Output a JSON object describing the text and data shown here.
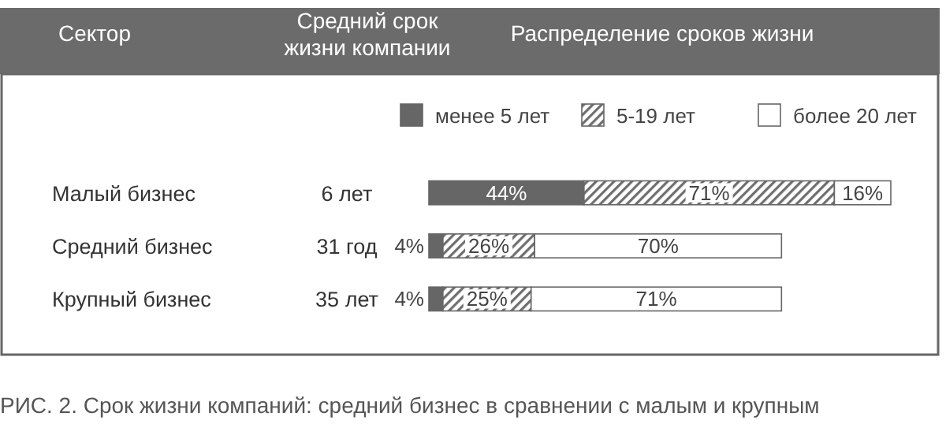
{
  "chart_data": {
    "type": "bar",
    "orientation": "horizontal",
    "stacked": true,
    "legend": "top right",
    "categories": [
      "Малый бизнес",
      "Средний бизнес",
      "Крупный бизнес"
    ],
    "series": [
      {
        "name": "менее 5 лет",
        "color": "#666666",
        "values": [
          44,
          4,
          4
        ],
        "value_labels": [
          "44%",
          "4%",
          "4%"
        ]
      },
      {
        "name": "5-19 лет",
        "color": "#6e6e6e",
        "values": [
          71,
          26,
          25
        ],
        "value_labels": [
          "71%",
          "26%",
          "25%"
        ]
      },
      {
        "name": "более 20 лет",
        "color": "#ffffff",
        "values": [
          16,
          70,
          71
        ],
        "value_labels": [
          "16%",
          "70%",
          "71%"
        ]
      }
    ],
    "annotations": [
      "Сектор",
      "Средний срок\nжизни компании",
      "Распределение сроков жизни",
      "6 лет",
      "31 год",
      "35 лет",
      "РИС. 2. Срок жизни компаний: средний бизнес в сравнении с малым и крупным"
    ]
  }
}
